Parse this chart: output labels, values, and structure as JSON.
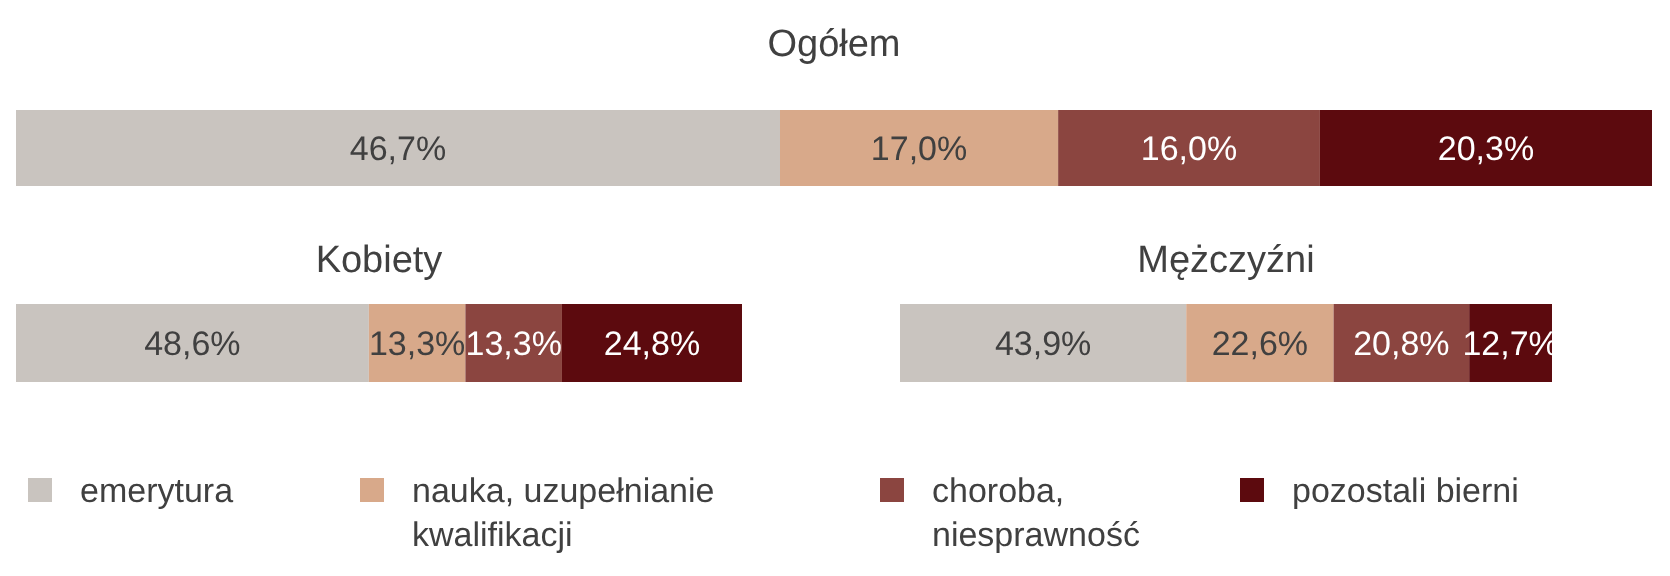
{
  "chart_data": [
    {
      "type": "bar",
      "title": "Ogółem",
      "orientation": "horizontal",
      "stacked": true,
      "legend": "bottom",
      "categories": [
        null
      ],
      "series": [
        {
          "name": "emerytura",
          "color": "#c9c4bf",
          "values": [
            46.7
          ],
          "value_labels": [
            "46,7%"
          ]
        },
        {
          "name": "nauka, uzupełnianie kwalifikacji",
          "color": "#d8a98a",
          "values": [
            17.0
          ],
          "value_labels": [
            "17,0%"
          ]
        },
        {
          "name": "choroba, niesprawność",
          "color": "#8b4540",
          "values": [
            16.0
          ],
          "value_labels": [
            "16,0%"
          ]
        },
        {
          "name": "pozostali bierni",
          "color": "#5c0a0e",
          "values": [
            20.3
          ],
          "value_labels": [
            "20,3%"
          ]
        }
      ]
    },
    {
      "type": "bar",
      "title": "Kobiety",
      "orientation": "horizontal",
      "stacked": true,
      "categories": [
        null
      ],
      "series": [
        {
          "color": "#c9c4bf",
          "values": [
            48.6
          ],
          "value_labels": [
            "48,6%"
          ]
        },
        {
          "color": "#d8a98a",
          "values": [
            13.3
          ],
          "value_labels": [
            "13,3%"
          ]
        },
        {
          "color": "#8b4540",
          "values": [
            13.3
          ],
          "value_labels": [
            "13,3%"
          ]
        },
        {
          "color": "#5c0a0e",
          "values": [
            24.8
          ],
          "value_labels": [
            "24,8%"
          ]
        }
      ]
    },
    {
      "type": "bar",
      "title": "Mężczyźni",
      "orientation": "horizontal",
      "stacked": true,
      "categories": [
        null
      ],
      "series": [
        {
          "color": "#c9c4bf",
          "values": [
            43.9
          ],
          "value_labels": [
            "43,9%"
          ]
        },
        {
          "color": "#d8a98a",
          "values": [
            22.6
          ],
          "value_labels": [
            "22,6%"
          ]
        },
        {
          "color": "#8b4540",
          "values": [
            20.8
          ],
          "value_labels": [
            "20,8%"
          ]
        },
        {
          "color": "#5c0a0e",
          "values": [
            12.7
          ],
          "value_labels": [
            "12,7%"
          ]
        }
      ]
    }
  ]
}
